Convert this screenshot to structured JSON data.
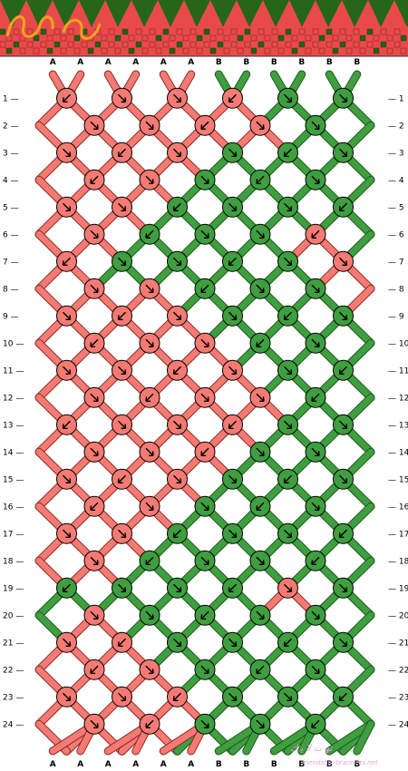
{
  "colors": {
    "A": "#f47a73",
    "A_dark": "#8a2a26",
    "B": "#3f9e3f",
    "B_dark": "#1f5a1f",
    "preview_A": "#e84a4a",
    "preview_B": "#0f6a12",
    "watermark": "#e9a7d6"
  },
  "string_labels_top": [
    "A",
    "A",
    "A",
    "A",
    "A",
    "A",
    "B",
    "B",
    "B",
    "B",
    "B",
    "B"
  ],
  "string_labels_bottom": [
    "A",
    "A",
    "A",
    "A",
    "A",
    "A",
    "B",
    "B",
    "B",
    "B",
    "B",
    "B"
  ],
  "rows": [
    "1",
    "2",
    "3",
    "4",
    "5",
    "6",
    "7",
    "8",
    "9",
    "10",
    "11",
    "12",
    "13",
    "14",
    "15",
    "16",
    "17",
    "18",
    "19",
    "20",
    "21",
    "22",
    "23",
    "24"
  ],
  "knot_colors": [
    "AAAABB",
    "AAAAB",
    "AAABBB",
    "AABBB",
    "AABBBB",
    "ABBBA",
    "ABBBBA",
    "AABBB",
    "AAABBB",
    "AAABB",
    "AAAABB",
    "AAAAB",
    "AAAABB",
    "AAABB",
    "AAABBB",
    "AABBB",
    "AABBBB",
    "ABBBB",
    "BBBBAB",
    "ABBBB",
    "AABBBB",
    "AABBB",
    "AAABBB",
    "AABBB"
  ],
  "watermark_text": "friendship-bracelets.net",
  "watermark_glyphs": "ﺗﮭ ﺏ ﻻ ﻳ ﻙ"
}
